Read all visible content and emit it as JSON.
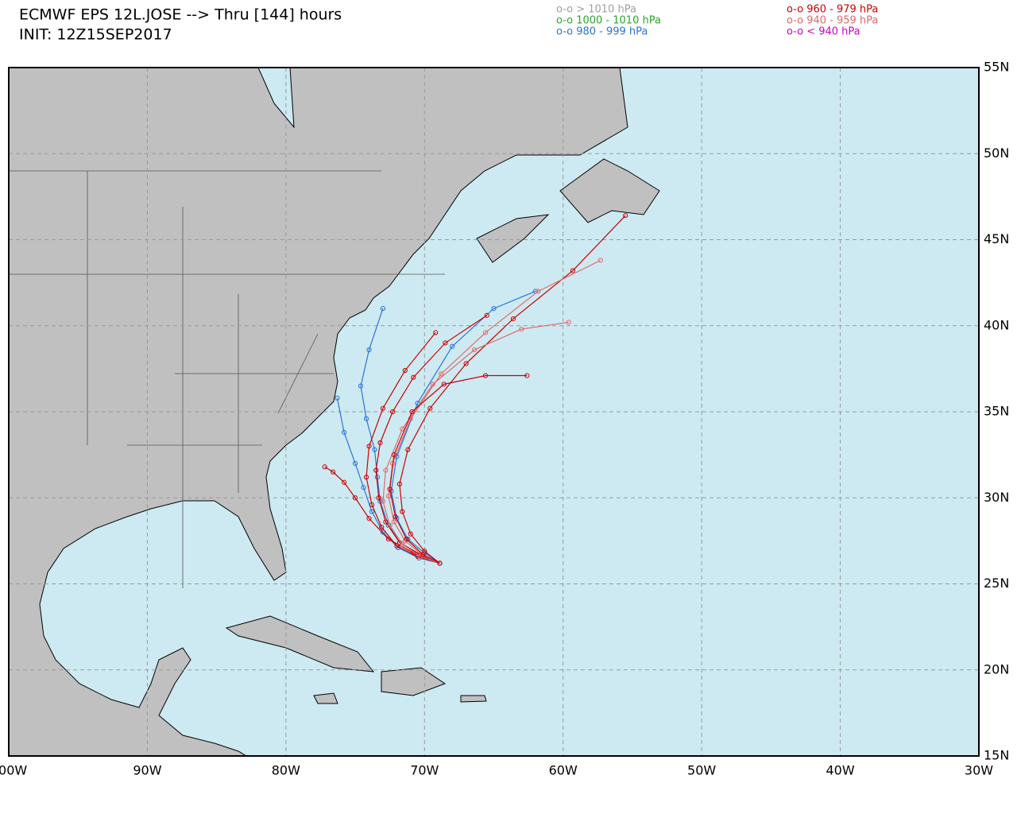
{
  "header": {
    "title": "ECMWF EPS 12L.JOSE --> Thru [144] hours",
    "init": "INIT: 12Z15SEP2017"
  },
  "legend": [
    {
      "label": "o-o > 1010 hPa",
      "color": "#a0a0a0"
    },
    {
      "label": "o-o 1000 - 1010 hPa",
      "color": "#2aa52a"
    },
    {
      "label": "o-o 980 - 999 hPa",
      "color": "#2a74d8"
    },
    {
      "label": "o-o 960 - 979 hPa",
      "color": "#cc0000"
    },
    {
      "label": "o-o 940 - 959 hPa",
      "color": "#e06a6a"
    },
    {
      "label": "o-o < 940 hPa",
      "color": "#cc00cc"
    }
  ],
  "chart_data": {
    "type": "map",
    "xlim": [
      -100,
      -30
    ],
    "ylim": [
      15,
      55
    ],
    "xticks": [
      {
        "value": -100,
        "label": "100W"
      },
      {
        "value": -90,
        "label": "90W"
      },
      {
        "value": -80,
        "label": "80W"
      },
      {
        "value": -70,
        "label": "70W"
      },
      {
        "value": -60,
        "label": "60W"
      },
      {
        "value": -50,
        "label": "50W"
      },
      {
        "value": -40,
        "label": "40W"
      },
      {
        "value": -30,
        "label": "30W"
      }
    ],
    "yticks": [
      {
        "value": 15,
        "label": "15N"
      },
      {
        "value": 20,
        "label": "20N"
      },
      {
        "value": 25,
        "label": "25N"
      },
      {
        "value": 30,
        "label": "30N"
      },
      {
        "value": 35,
        "label": "35N"
      },
      {
        "value": 40,
        "label": "40N"
      },
      {
        "value": 45,
        "label": "45N"
      },
      {
        "value": 50,
        "label": "50N"
      },
      {
        "value": 55,
        "label": "55N"
      }
    ],
    "grid": true,
    "tracks": [
      {
        "color": "#2a74d8",
        "lon": [
          -68.9,
          -70.2,
          -71.6,
          -72.6,
          -73.2,
          -73.4,
          -73.6,
          -74.2,
          -74.6,
          -74.0,
          -73.0
        ],
        "lat": [
          26.2,
          26.6,
          27.3,
          28.4,
          29.8,
          31.2,
          32.8,
          34.6,
          36.5,
          38.6,
          41.0
        ]
      },
      {
        "color": "#2a74d8",
        "lon": [
          -68.9,
          -70.4,
          -71.9,
          -73.0,
          -73.8,
          -74.4,
          -75.0,
          -75.8,
          -76.3
        ],
        "lat": [
          26.2,
          26.5,
          27.1,
          28.0,
          29.2,
          30.6,
          32.0,
          33.8,
          35.8
        ]
      },
      {
        "color": "#2a74d8",
        "lon": [
          -68.9,
          -70.0,
          -71.2,
          -72.0,
          -72.4,
          -72.0,
          -70.5,
          -68.0,
          -65.0,
          -62.0
        ],
        "lat": [
          26.2,
          26.8,
          27.6,
          28.8,
          30.4,
          32.4,
          35.5,
          38.8,
          41.0,
          42.0
        ]
      },
      {
        "color": "#cc0000",
        "lon": [
          -68.9,
          -70.3,
          -71.8,
          -72.8,
          -73.3,
          -73.5,
          -73.2,
          -72.3,
          -70.8,
          -68.5,
          -65.5
        ],
        "lat": [
          26.2,
          26.7,
          27.4,
          28.6,
          30.0,
          31.6,
          33.2,
          35.0,
          37.0,
          39.0,
          40.6
        ]
      },
      {
        "color": "#cc0000",
        "lon": [
          -68.9,
          -70.5,
          -72.0,
          -73.1,
          -73.8,
          -74.2,
          -74.0,
          -73.0,
          -71.4,
          -69.2
        ],
        "lat": [
          26.2,
          26.6,
          27.2,
          28.3,
          29.6,
          31.2,
          33.0,
          35.2,
          37.4,
          39.6
        ]
      },
      {
        "color": "#cc0000",
        "lon": [
          -68.9,
          -70.0,
          -71.0,
          -71.6,
          -71.8,
          -71.2,
          -69.6,
          -67.0,
          -63.6,
          -59.3,
          -55.5
        ],
        "lat": [
          26.2,
          26.9,
          27.9,
          29.2,
          30.8,
          32.8,
          35.2,
          37.8,
          40.4,
          43.2,
          46.4
        ]
      },
      {
        "color": "#cc0000",
        "lon": [
          -68.9,
          -70.8,
          -72.6,
          -74.0,
          -75.0,
          -75.8,
          -76.6,
          -77.2
        ],
        "lat": [
          26.2,
          26.8,
          27.6,
          28.8,
          30.0,
          30.9,
          31.5,
          31.8
        ]
      },
      {
        "color": "#e06a6a",
        "lon": [
          -68.9,
          -70.2,
          -71.4,
          -72.2,
          -72.6,
          -72.3,
          -71.0,
          -68.8,
          -65.6,
          -61.8,
          -57.3
        ],
        "lat": [
          26.2,
          26.7,
          27.5,
          28.6,
          30.1,
          32.0,
          34.6,
          37.2,
          39.6,
          42.0,
          43.8
        ]
      },
      {
        "color": "#e06a6a",
        "lon": [
          -68.9,
          -70.3,
          -71.6,
          -72.5,
          -73.0,
          -72.8,
          -71.6,
          -69.4,
          -66.4,
          -63.0,
          -59.6
        ],
        "lat": [
          26.2,
          26.6,
          27.3,
          28.4,
          29.8,
          31.6,
          34.0,
          36.6,
          38.6,
          39.8,
          40.2
        ]
      },
      {
        "color": "#cc0000",
        "lon": [
          -68.9,
          -70.1,
          -71.3,
          -72.1,
          -72.5,
          -72.2,
          -70.9,
          -68.6,
          -65.6,
          -62.6
        ],
        "lat": [
          26.2,
          26.7,
          27.6,
          28.9,
          30.5,
          32.5,
          35.0,
          36.6,
          37.1,
          37.1
        ]
      }
    ]
  }
}
